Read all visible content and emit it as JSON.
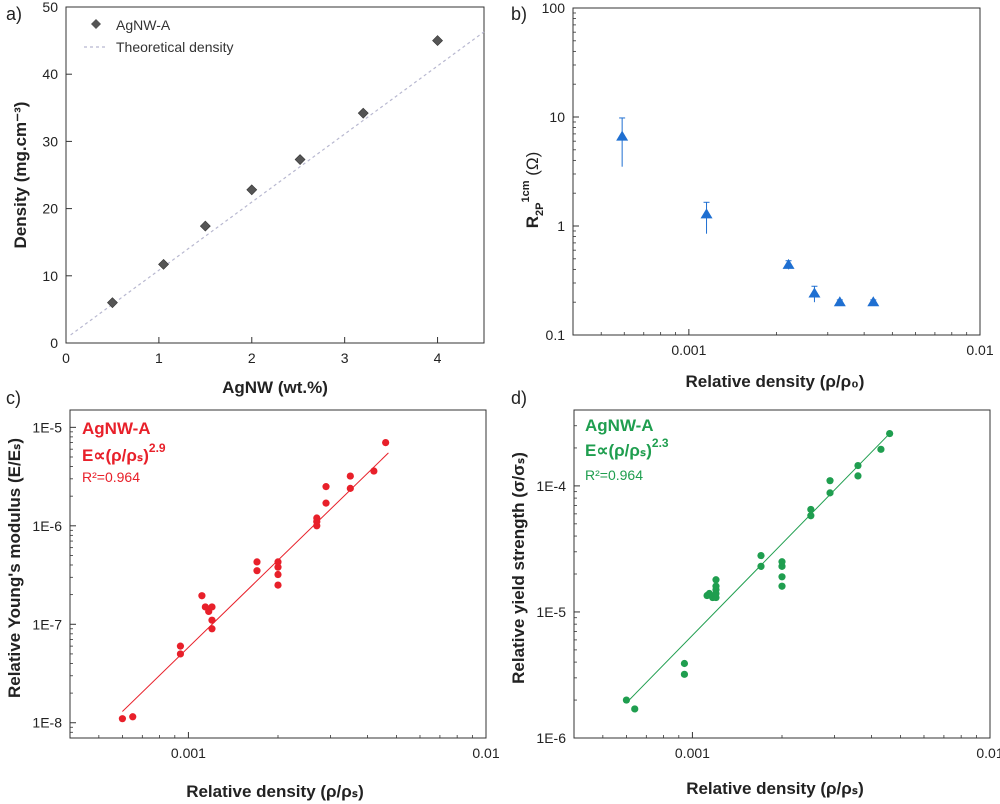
{
  "chart_data": [
    {
      "panel": "a)",
      "type": "scatter",
      "xlabel": "AgNW (wt.%)",
      "ylabel": "Density (mg.cm⁻³)",
      "xlim": [
        0,
        4.5
      ],
      "ylim": [
        0,
        50
      ],
      "xticks": [
        0,
        1,
        2,
        3,
        4
      ],
      "yticks": [
        0,
        10,
        20,
        30,
        40,
        50
      ],
      "series": [
        {
          "name": "AgNW-A",
          "marker": "diamond",
          "color": "#555555",
          "x": [
            0.5,
            1.05,
            1.5,
            2.0,
            2.52,
            3.2,
            4.0
          ],
          "y": [
            6,
            11.7,
            17.4,
            22.8,
            27.3,
            34.2,
            45
          ]
        },
        {
          "name": "Theoretical density",
          "style": "dashed",
          "color": "#b8b8d0",
          "x": [
            0.05,
            4.5
          ],
          "y": [
            1.2,
            46.3
          ]
        }
      ],
      "legend_position": "top-left"
    },
    {
      "panel": "b)",
      "type": "scatter",
      "xscale": "log",
      "yscale": "log",
      "xlabel": "Relative density (ρ/ρ₀)",
      "ylabel_main": "R",
      "ylabel_sub": "2P",
      "ylabel_sup": "1cm",
      "ylabel_unit": " (Ω)",
      "xlim": [
        0.0004,
        0.01
      ],
      "ylim": [
        0.1,
        100
      ],
      "xtick_labels": [
        "0.001",
        "0.01"
      ],
      "xtick_values": [
        0.001,
        0.01
      ],
      "ytick_labels": [
        "0.1",
        "1",
        "10",
        "100"
      ],
      "ytick_values": [
        0.1,
        1,
        10,
        100
      ],
      "color": "#1f6fd1",
      "x": [
        0.00059,
        0.00115,
        0.0022,
        0.0027,
        0.0033,
        0.0043
      ],
      "y": [
        6.6,
        1.28,
        0.44,
        0.24,
        0.2,
        0.2
      ],
      "err_low": [
        3.5,
        0.85,
        0.4,
        0.2,
        0.19,
        0.19
      ],
      "err_high": [
        9.8,
        1.65,
        0.48,
        0.28,
        0.21,
        0.21
      ]
    },
    {
      "panel": "c)",
      "type": "scatter",
      "xscale": "log",
      "yscale": "log",
      "xlabel": "Relative density (ρ/ρₛ)",
      "ylabel": "Relative Young's modulus (E/Eₛ)",
      "xlim": [
        0.0004,
        0.01
      ],
      "ylim": [
        7e-09,
        1.5e-05
      ],
      "xtick_labels": [
        "0.001",
        "0.01"
      ],
      "xtick_values": [
        0.001,
        0.01
      ],
      "ytick_labels": [
        "1E-8",
        "1E-7",
        "1E-6",
        "1E-5"
      ],
      "ytick_values": [
        1e-08,
        1e-07,
        1e-06,
        1e-05
      ],
      "color": "#e8202a",
      "annotation": {
        "name": "AgNW-A",
        "formula": "E∝(ρ/ρₛ)",
        "exponent": "2.9",
        "r2": "R²=0.964"
      },
      "fit": {
        "x": [
          0.0006,
          0.0047
        ],
        "y": [
          1.3e-08,
          5.5e-06
        ]
      },
      "x": [
        0.0006,
        0.00065,
        0.00094,
        0.00094,
        0.00111,
        0.00114,
        0.00117,
        0.0012,
        0.0012,
        0.0012,
        0.0017,
        0.0017,
        0.002,
        0.002,
        0.002,
        0.002,
        0.0027,
        0.0027,
        0.0027,
        0.0029,
        0.0029,
        0.0035,
        0.0035,
        0.0042,
        0.0046
      ],
      "y": [
        1.1e-08,
        1.15e-08,
        5e-08,
        6e-08,
        1.95e-07,
        1.5e-07,
        1.35e-07,
        1.5e-07,
        1.1e-07,
        9e-08,
        3.5e-07,
        4.3e-07,
        2.5e-07,
        3.2e-07,
        3.8e-07,
        4.3e-07,
        1e-06,
        1.1e-06,
        1.2e-06,
        1.7e-06,
        2.5e-06,
        2.4e-06,
        3.2e-06,
        3.6e-06,
        7e-06
      ]
    },
    {
      "panel": "d)",
      "type": "scatter",
      "xscale": "log",
      "yscale": "log",
      "xlabel": "Relative density (ρ/ρₛ)",
      "ylabel": "Relative yield strength (σ/σₛ)",
      "xlim": [
        0.0004,
        0.01
      ],
      "ylim": [
        1e-06,
        0.0004
      ],
      "xtick_labels": [
        "0.001",
        "0.01"
      ],
      "xtick_values": [
        0.001,
        0.01
      ],
      "ytick_labels": [
        "1E-6",
        "1E-5",
        "1E-4"
      ],
      "ytick_values": [
        1e-06,
        1e-05,
        0.0001
      ],
      "color": "#1f9e4f",
      "annotation": {
        "name": "AgNW-A",
        "formula": "E∝(ρ/ρₛ)",
        "exponent": "2.3",
        "r2": "R²=0.964"
      },
      "fit": {
        "x": [
          0.0006,
          0.0046
        ],
        "y": [
          1.9e-06,
          0.00026
        ]
      },
      "x": [
        0.0006,
        0.00064,
        0.00094,
        0.00094,
        0.00112,
        0.00114,
        0.00117,
        0.0012,
        0.0012,
        0.0012,
        0.0012,
        0.0012,
        0.0017,
        0.0017,
        0.002,
        0.002,
        0.002,
        0.002,
        0.0025,
        0.0025,
        0.0029,
        0.0029,
        0.0036,
        0.0036,
        0.0043,
        0.0046
      ],
      "y": [
        2e-06,
        1.7e-06,
        3.2e-06,
        3.9e-06,
        1.35e-05,
        1.4e-05,
        1.3e-05,
        1.8e-05,
        1.5e-05,
        1.3e-05,
        1.4e-05,
        1.6e-05,
        2.3e-05,
        2.8e-05,
        1.6e-05,
        1.9e-05,
        2.3e-05,
        2.5e-05,
        5.8e-05,
        6.5e-05,
        8.8e-05,
        0.00011,
        0.00012,
        0.000145,
        0.000195,
        0.00026
      ]
    }
  ],
  "legend": {
    "a_series1": "AgNW-A",
    "a_series2": "Theoretical density"
  }
}
